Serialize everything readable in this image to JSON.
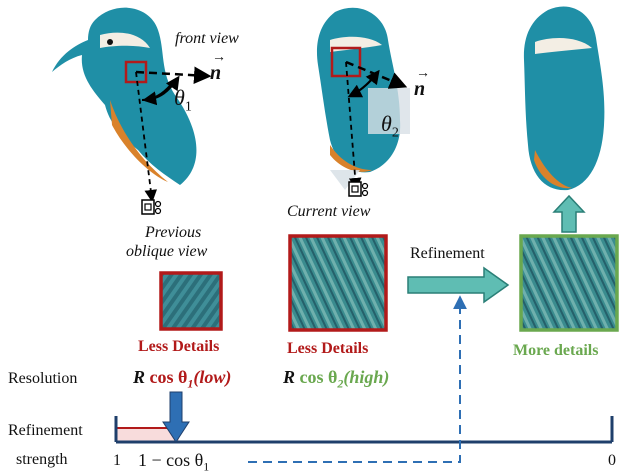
{
  "labels": {
    "front_view": "front view",
    "previous_view_line1": "Previous",
    "previous_view_line2": "oblique view",
    "current_view": "Current view",
    "refinement": "Refinement",
    "less_details_1": "Less Details",
    "less_details_2": "Less Details",
    "more_details": "More details",
    "resolution": "Resolution",
    "refinement_strength_line1": "Refinement",
    "refinement_strength_line2": "strength",
    "normal_symbol": "n",
    "theta1": "θ",
    "theta1_sub": "1",
    "theta2": "θ",
    "theta2_sub": "2"
  },
  "formulas": {
    "res_low_R": "R",
    "res_low_cos": " cos θ",
    "res_low_sub": "1",
    "res_low_tag": "(low)",
    "res_high_R": "R",
    "res_high_cos": " cos θ",
    "res_high_sub": "2",
    "res_high_tag": "(high)"
  },
  "axis": {
    "left_tick": "1",
    "marker_label": "1 − cos θ",
    "marker_sub": "1",
    "right_tick": "0"
  },
  "colors": {
    "red": "#b21a1a",
    "green": "#6aa84f",
    "teal": "#5fbdb3",
    "axis": "#1f3f6b",
    "blue_arrow": "#2e6fb4",
    "bird_teal": "#1f8fa6",
    "bird_orange": "#d9822b"
  }
}
